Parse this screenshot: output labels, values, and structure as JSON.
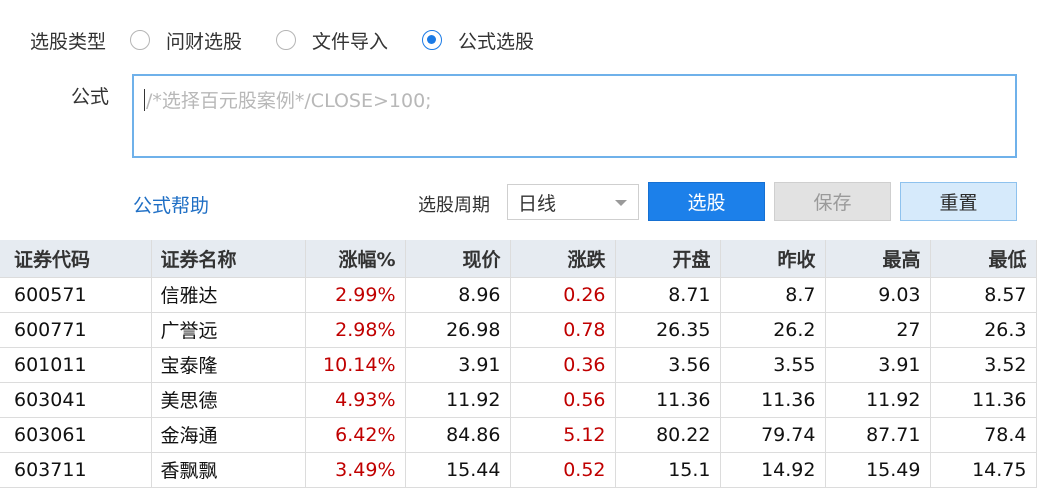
{
  "selection_type": {
    "label": "选股类型",
    "options": [
      {
        "label": "问财选股",
        "checked": false
      },
      {
        "label": "文件导入",
        "checked": false
      },
      {
        "label": "公式选股",
        "checked": true
      }
    ]
  },
  "formula": {
    "label": "公式",
    "placeholder": "/*选择百元股案例*/CLOSE>100;"
  },
  "help_link": "公式帮助",
  "period": {
    "label": "选股周期",
    "selected": "日线"
  },
  "buttons": {
    "select": "选股",
    "save": "保存",
    "reset": "重置"
  },
  "table": {
    "columns": [
      "证券代码",
      "证券名称",
      "涨幅%",
      "现价",
      "涨跌",
      "开盘",
      "昨收",
      "最高",
      "最低"
    ],
    "rows": [
      [
        "600571",
        "信雅达",
        "2.99%",
        "8.96",
        "0.26",
        "8.71",
        "8.7",
        "9.03",
        "8.57"
      ],
      [
        "600771",
        "广誉远",
        "2.98%",
        "26.98",
        "0.78",
        "26.35",
        "26.2",
        "27",
        "26.3"
      ],
      [
        "601011",
        "宝泰隆",
        "10.14%",
        "3.91",
        "0.36",
        "3.56",
        "3.55",
        "3.91",
        "3.52"
      ],
      [
        "603041",
        "美思德",
        "4.93%",
        "11.92",
        "0.56",
        "11.36",
        "11.36",
        "11.92",
        "11.36"
      ],
      [
        "603061",
        "金海通",
        "6.42%",
        "84.86",
        "5.12",
        "80.22",
        "79.74",
        "87.71",
        "78.4"
      ],
      [
        "603711",
        "香飘飘",
        "3.49%",
        "15.44",
        "0.52",
        "15.1",
        "14.92",
        "15.49",
        "14.75"
      ]
    ]
  },
  "colors": {
    "accent": "#1c80ea",
    "up": "#c00000",
    "header_bg": "#e6ebf1"
  }
}
